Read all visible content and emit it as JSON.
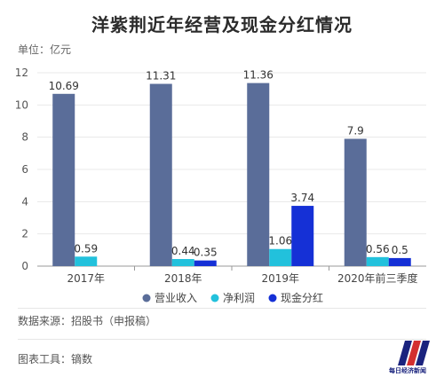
{
  "header": {
    "title": "洋紫荆近年经营及现金分红情况",
    "unit": "单位：亿元"
  },
  "footer": {
    "source": "数据来源：招股书（申报稿）",
    "tool": "图表工具：镝数",
    "logo_text": "每日经济新闻"
  },
  "colors": {
    "revenue": "#5a6d99",
    "profit": "#22c1dc",
    "dividend": "#1530d6",
    "grid": "#e8e8e8",
    "axis": "#999999"
  },
  "chart_data": {
    "type": "bar",
    "title": "洋紫荆近年经营及现金分红情况",
    "ylabel": "单位：亿元",
    "xlabel": "",
    "categories": [
      "2017年",
      "2018年",
      "2019年",
      "2020年前三季度"
    ],
    "ylim": [
      0,
      12
    ],
    "yticks": [
      0,
      2,
      4,
      6,
      8,
      10,
      12
    ],
    "grid": true,
    "legend_position": "bottom",
    "series": [
      {
        "name": "营业收入",
        "color": "#5a6d99",
        "values": [
          10.69,
          11.31,
          11.36,
          7.9
        ],
        "labels": [
          "10.69",
          "11.31",
          "11.36",
          "7.9"
        ]
      },
      {
        "name": "净利润",
        "color": "#22c1dc",
        "values": [
          0.59,
          0.44,
          1.06,
          0.56
        ],
        "labels": [
          "0.59",
          "0.44",
          "1.06",
          "0.56"
        ]
      },
      {
        "name": "现金分红",
        "color": "#1530d6",
        "values": [
          null,
          0.35,
          3.74,
          0.5
        ],
        "labels": [
          null,
          "0.35",
          "3.74",
          "0.5"
        ]
      }
    ]
  }
}
